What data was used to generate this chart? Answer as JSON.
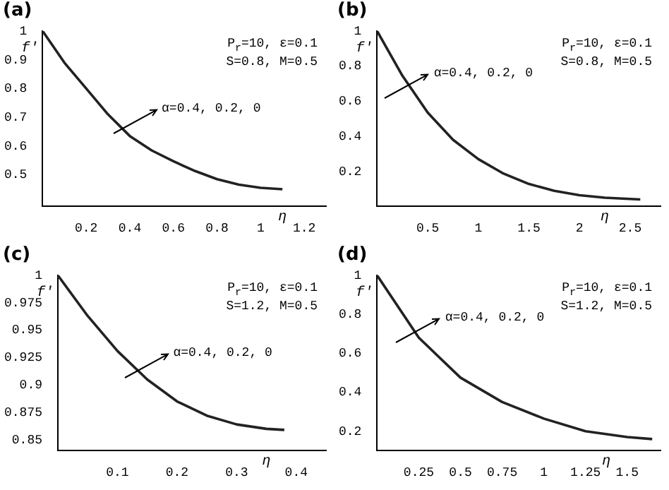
{
  "chart_data": [
    {
      "type": "line",
      "title": "(a)",
      "xlabel": "η",
      "ylabel": "f'",
      "x": [
        0,
        0.1,
        0.2,
        0.3,
        0.4,
        0.5,
        0.6,
        0.7,
        0.8,
        0.9,
        1.0,
        1.1
      ],
      "series": [
        {
          "color": "#222222",
          "values": [
            1,
            0.89,
            0.8,
            0.71,
            0.635,
            0.585,
            0.547,
            0.513,
            0.485,
            0.466,
            0.455,
            0.45
          ]
        }
      ],
      "xlim": [
        0,
        1.3
      ],
      "xticks": [
        0.2,
        0.4,
        0.6,
        0.8,
        1,
        1.2
      ],
      "ylim": [
        0.39,
        1
      ],
      "yticks": [
        0.5,
        0.6,
        0.7,
        0.8,
        0.9,
        1
      ],
      "annotations": [
        "P$_{r}$=10, ε=0.1",
        "S=0.8, M=0.5",
        "α=0.4, 0.2, 0"
      ],
      "legend": false,
      "grid": false,
      "marker": "none"
    },
    {
      "type": "line",
      "title": "(b)",
      "xlabel": "η",
      "ylabel": "f'",
      "x": [
        0,
        0.25,
        0.5,
        0.75,
        1,
        1.25,
        1.5,
        1.75,
        2,
        2.25,
        2.6
      ],
      "series": [
        {
          "color": "#222222",
          "values": [
            1,
            0.745,
            0.535,
            0.38,
            0.27,
            0.187,
            0.128,
            0.089,
            0.064,
            0.05,
            0.04
          ]
        }
      ],
      "xlim": [
        0,
        2.8
      ],
      "xticks": [
        0.5,
        1,
        1.5,
        2,
        2.5
      ],
      "ylim": [
        0,
        1
      ],
      "yticks": [
        0.2,
        0.4,
        0.6,
        0.8,
        1
      ],
      "annotations": [
        "P$_{r}$=10, ε=0.1",
        "S=0.8, M=0.5",
        "α=0.4, 0.2, 0"
      ],
      "legend": false,
      "grid": false,
      "marker": "none"
    },
    {
      "type": "line",
      "title": "(c)",
      "xlabel": "η",
      "ylabel": "f'",
      "x": [
        0,
        0.05,
        0.1,
        0.15,
        0.2,
        0.25,
        0.3,
        0.35,
        0.38
      ],
      "series": [
        {
          "color": "#222222",
          "values": [
            1,
            0.963,
            0.931,
            0.905,
            0.885,
            0.872,
            0.864,
            0.86,
            0.859
          ]
        }
      ],
      "xlim": [
        0,
        0.45
      ],
      "xticks": [
        0.1,
        0.2,
        0.3,
        0.4
      ],
      "ylim": [
        0.84,
        1
      ],
      "yticks": [
        0.85,
        0.875,
        0.9,
        0.925,
        0.95,
        0.975,
        1
      ],
      "annotations": [
        "P$_{r}$=10, ε=0.1",
        "S=1.2, M=0.5",
        "α=0.4, 0.2, 0"
      ],
      "legend": false,
      "grid": false,
      "marker": "none"
    },
    {
      "type": "line",
      "title": "(d)",
      "xlabel": "η",
      "ylabel": "f'",
      "x": [
        0,
        0.25,
        0.5,
        0.75,
        1,
        1.25,
        1.5,
        1.65
      ],
      "series": [
        {
          "color": "#222222",
          "values": [
            1,
            0.68,
            0.475,
            0.35,
            0.265,
            0.2,
            0.17,
            0.16
          ]
        }
      ],
      "xlim": [
        0,
        1.7
      ],
      "xticks": [
        0.25,
        0.5,
        0.75,
        1,
        1.25,
        1.5
      ],
      "ylim": [
        0.1,
        1
      ],
      "yticks": [
        0.2,
        0.4,
        0.6,
        0.8,
        1
      ],
      "annotations": [
        "P$_{r}$=10, ε=0.1",
        "S=1.2, M=0.5",
        "α=0.4, 0.2, 0"
      ],
      "legend": false,
      "grid": false,
      "marker": "none"
    }
  ]
}
